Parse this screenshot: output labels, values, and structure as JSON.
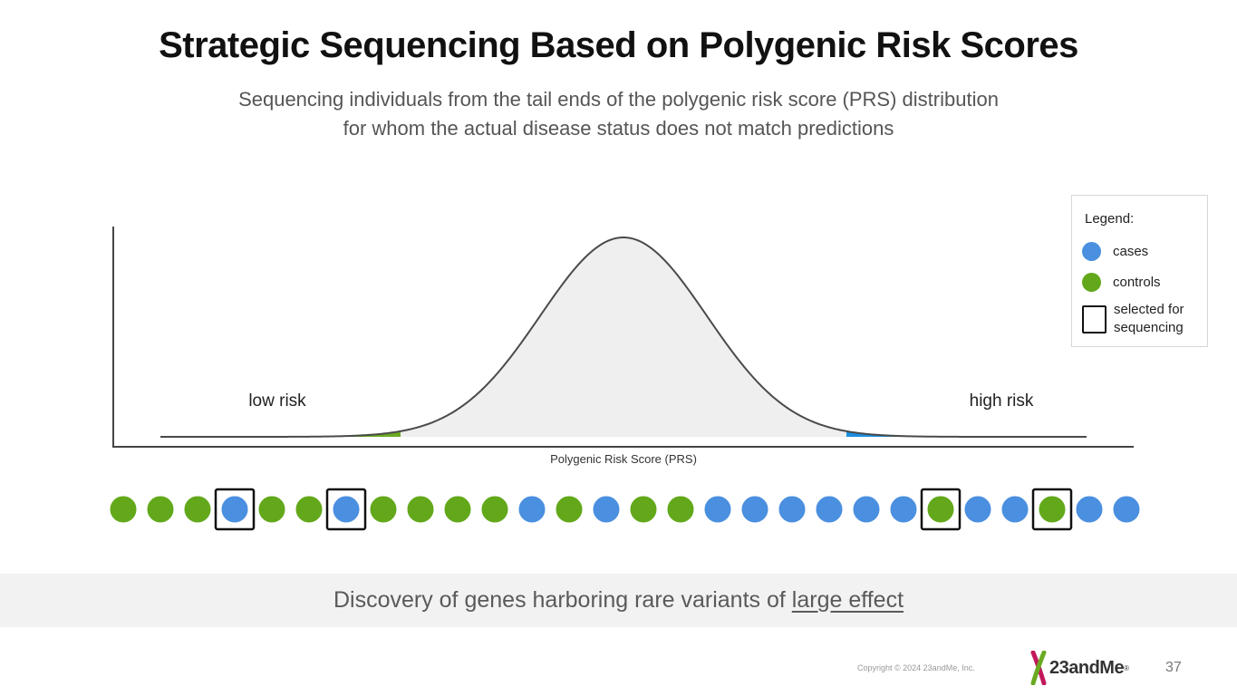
{
  "title": "Strategic Sequencing Based on Polygenic Risk Scores",
  "subtitle": {
    "line1": "Sequencing individuals from the tail ends of the polygenic risk score (PRS) distribution",
    "line2": "for whom the actual disease status does not match predictions"
  },
  "chart": {
    "xlabel": "Polygenic Risk Score (PRS)",
    "low_label": "low risk",
    "high_label": "high risk",
    "colors": {
      "curve_fill": "#efefef",
      "curve_line": "#4a4a4a",
      "low_tail": "#6aaa22",
      "high_tail": "#1c8ee0",
      "axis": "#444444"
    }
  },
  "individuals": [
    {
      "status": "control",
      "selected": false
    },
    {
      "status": "control",
      "selected": false
    },
    {
      "status": "control",
      "selected": false
    },
    {
      "status": "case",
      "selected": true
    },
    {
      "status": "control",
      "selected": false
    },
    {
      "status": "control",
      "selected": false
    },
    {
      "status": "case",
      "selected": true
    },
    {
      "status": "control",
      "selected": false
    },
    {
      "status": "control",
      "selected": false
    },
    {
      "status": "control",
      "selected": false
    },
    {
      "status": "control",
      "selected": false
    },
    {
      "status": "case",
      "selected": false
    },
    {
      "status": "control",
      "selected": false
    },
    {
      "status": "case",
      "selected": false
    },
    {
      "status": "control",
      "selected": false
    },
    {
      "status": "control",
      "selected": false
    },
    {
      "status": "case",
      "selected": false
    },
    {
      "status": "case",
      "selected": false
    },
    {
      "status": "case",
      "selected": false
    },
    {
      "status": "case",
      "selected": false
    },
    {
      "status": "case",
      "selected": false
    },
    {
      "status": "case",
      "selected": false
    },
    {
      "status": "control",
      "selected": true
    },
    {
      "status": "case",
      "selected": false
    },
    {
      "status": "case",
      "selected": false
    },
    {
      "status": "control",
      "selected": true
    },
    {
      "status": "case",
      "selected": false
    },
    {
      "status": "case",
      "selected": false
    }
  ],
  "legend": {
    "title": "Legend:",
    "cases_label": "cases",
    "controls_label": "controls",
    "selected_line1": "selected for",
    "selected_line2": "sequencing",
    "case_color": "#4a8fe0",
    "control_color": "#62a81a"
  },
  "banner": {
    "text": "Discovery of genes harboring rare variants of ",
    "emphasis": "large effect"
  },
  "footer": {
    "copyright": "Copyright © 2024 23andMe, Inc.",
    "logo_text": "23andMe",
    "logo_reg": "®",
    "page_number": "37"
  }
}
